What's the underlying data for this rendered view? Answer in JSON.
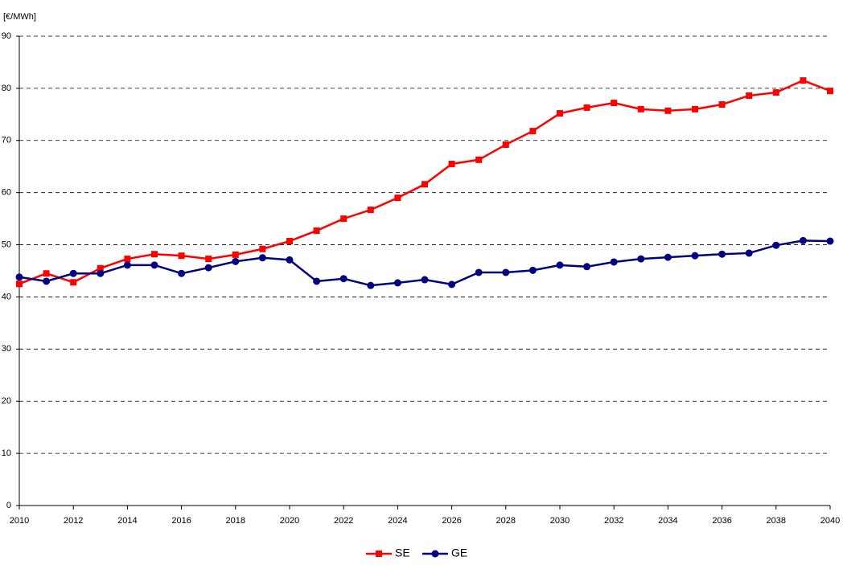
{
  "chart_data": {
    "type": "line",
    "y_label": "[€/MWh]",
    "x": [
      2010,
      2011,
      2012,
      2013,
      2014,
      2015,
      2016,
      2017,
      2018,
      2019,
      2020,
      2021,
      2022,
      2023,
      2024,
      2025,
      2026,
      2027,
      2028,
      2029,
      2030,
      2031,
      2032,
      2033,
      2034,
      2035,
      2036,
      2037,
      2038,
      2039,
      2040
    ],
    "series": [
      {
        "name": "SE",
        "color": "#ff0000",
        "marker": "square",
        "values": [
          42.5,
          44.5,
          42.8,
          45.5,
          47.3,
          48.2,
          47.9,
          47.3,
          48.1,
          49.2,
          50.7,
          52.7,
          55.0,
          56.7,
          59.0,
          61.6,
          65.5,
          66.3,
          69.2,
          71.8,
          75.2,
          76.3,
          77.2,
          76.0,
          75.7,
          76.0,
          76.9,
          78.6,
          79.2,
          81.5,
          79.5
        ]
      },
      {
        "name": "GE",
        "color": "#000080",
        "marker": "circle",
        "values": [
          43.8,
          43.0,
          44.5,
          44.5,
          46.1,
          46.1,
          44.5,
          45.6,
          46.8,
          47.5,
          47.1,
          43.0,
          43.5,
          42.2,
          42.7,
          43.3,
          42.4,
          44.7,
          44.7,
          45.1,
          46.1,
          45.8,
          46.7,
          47.3,
          47.6,
          47.9,
          48.2,
          48.4,
          49.9,
          50.8,
          50.7
        ]
      }
    ],
    "xlim": [
      2010,
      2040
    ],
    "xticks": [
      2010,
      2012,
      2014,
      2016,
      2018,
      2020,
      2022,
      2024,
      2026,
      2028,
      2030,
      2032,
      2034,
      2036,
      2038,
      2040
    ],
    "ylim": [
      0,
      90
    ],
    "yticks": [
      0,
      10,
      20,
      30,
      40,
      50,
      60,
      70,
      80,
      90
    ],
    "grid": true,
    "legend": "bottom"
  }
}
